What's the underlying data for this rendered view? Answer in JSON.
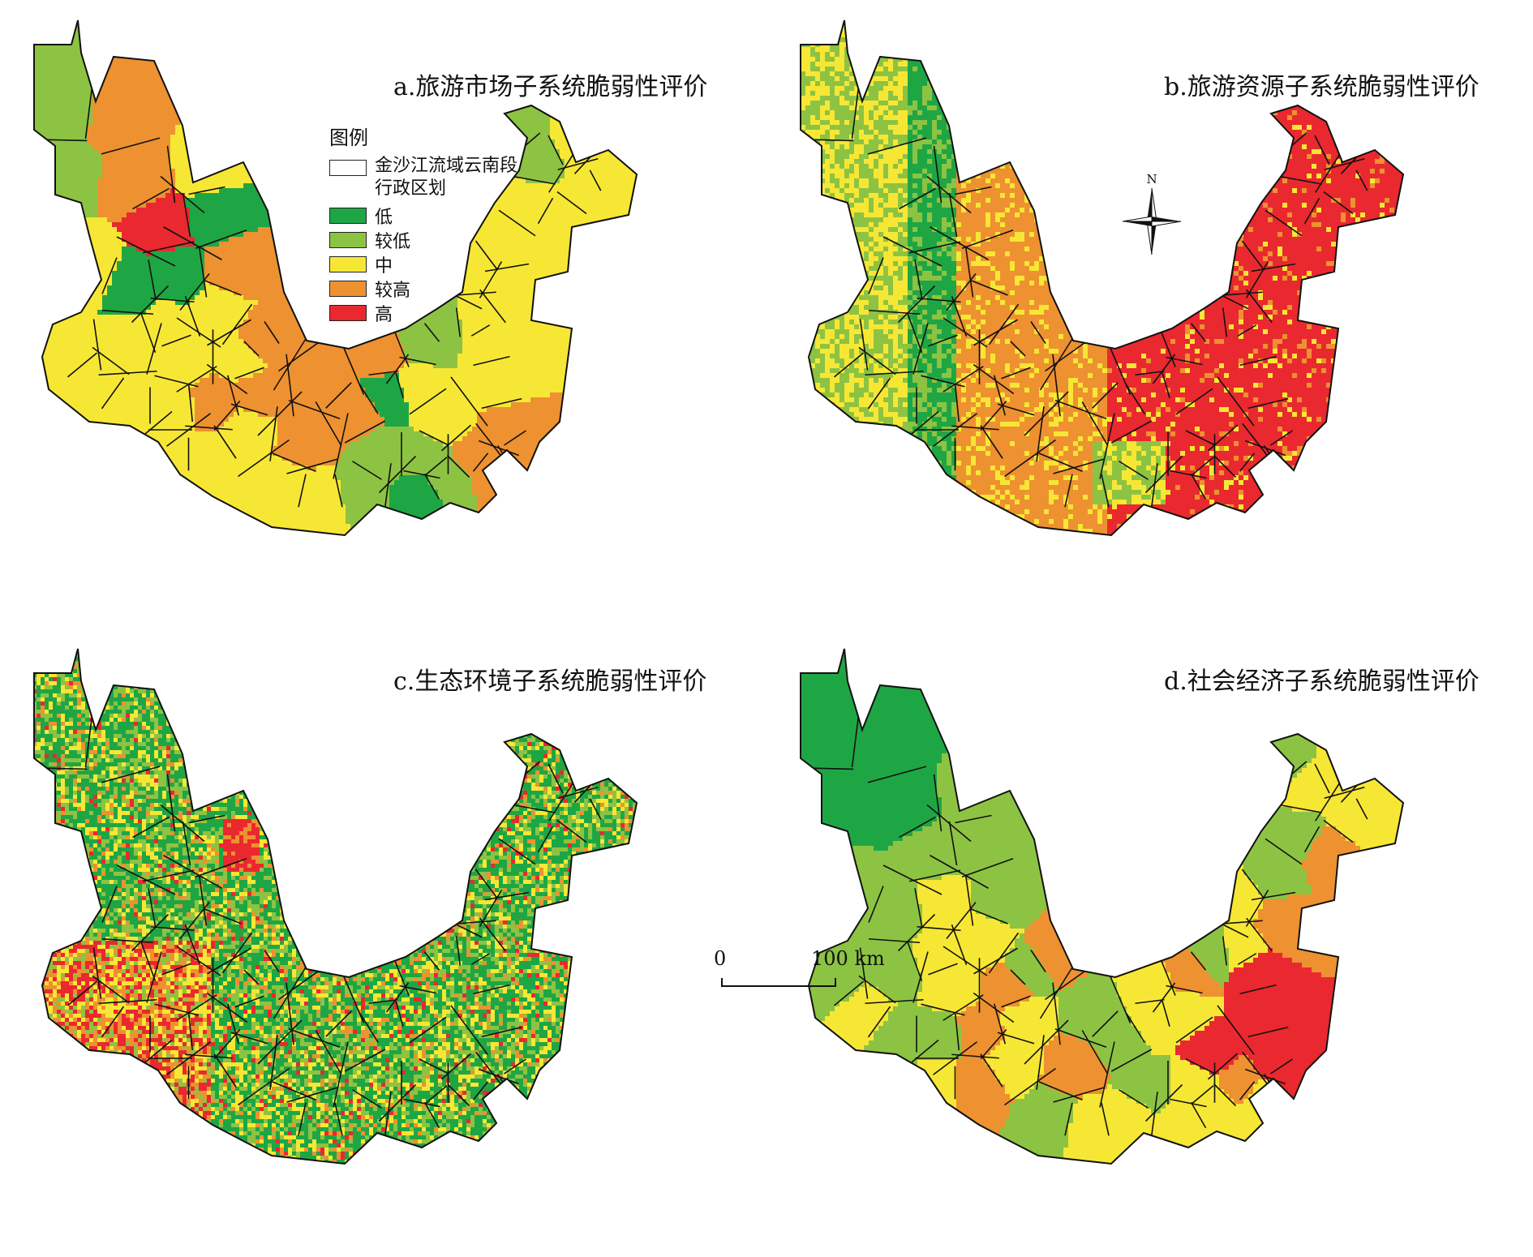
{
  "panels": {
    "a": {
      "title": "a.旅游市场子系统脆弱性评价"
    },
    "b": {
      "title": "b.旅游资源子系统脆弱性评价"
    },
    "c": {
      "title": "c.生态环境子系统脆弱性评价"
    },
    "d": {
      "title": "d.社会经济子系统脆弱性评价"
    }
  },
  "legend": {
    "title": "图例",
    "admin_line1": "金沙江流域云南段",
    "admin_line2": "行政区划",
    "classes": [
      {
        "label": "低",
        "color": "#1fa644"
      },
      {
        "label": "较低",
        "color": "#8dc343"
      },
      {
        "label": "中",
        "color": "#f7e735"
      },
      {
        "label": "较高",
        "color": "#ee9130"
      },
      {
        "label": "高",
        "color": "#e9292f"
      }
    ]
  },
  "north_label": "N",
  "scale": {
    "start": "0",
    "end": "100 km"
  }
}
